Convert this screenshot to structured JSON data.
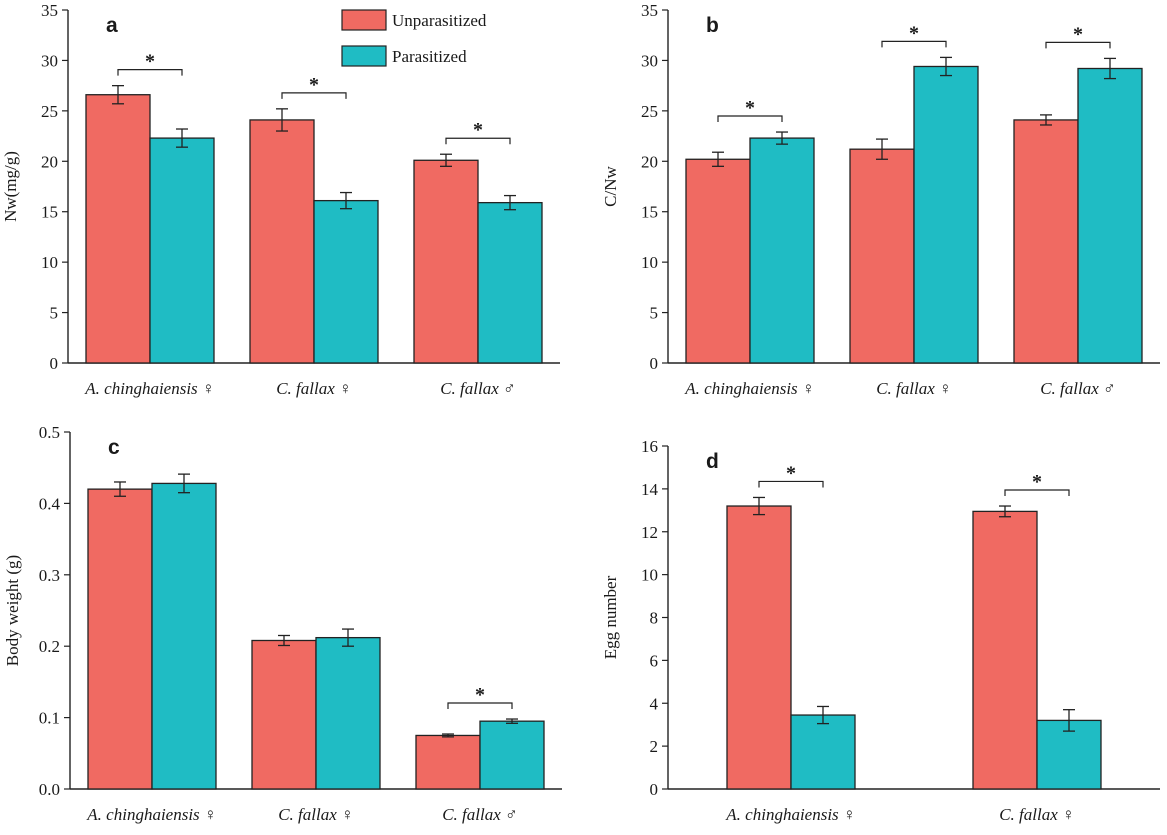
{
  "legend": {
    "items": [
      {
        "label": "Unparasitized",
        "color": "#f06a62"
      },
      {
        "label": "Parasitized",
        "color": "#1fbcc4"
      }
    ]
  },
  "colors": {
    "unparasitized": "#f06a62",
    "parasitized": "#1fbcc4",
    "edge": "#222222"
  },
  "chart_data": [
    {
      "panel": "a",
      "type": "bar",
      "ylabel": "Nw(mg/g)",
      "ylim": [
        0,
        35
      ],
      "yticks": [
        "0",
        "5",
        "10",
        "15",
        "20",
        "25",
        "30",
        "35"
      ],
      "categories": [
        {
          "name": "A. chinghaiensis",
          "sex": "♀"
        },
        {
          "name": "C. fallax",
          "sex": "♀"
        },
        {
          "name": "C. fallax",
          "sex": "♂"
        }
      ],
      "series": [
        {
          "name": "Unparasitized",
          "values": [
            26.6,
            24.1,
            20.1
          ],
          "errors": [
            0.9,
            1.1,
            0.6
          ]
        },
        {
          "name": "Parasitized",
          "values": [
            22.3,
            16.1,
            15.9
          ],
          "errors": [
            0.9,
            0.8,
            0.7
          ]
        }
      ],
      "significance": [
        "*",
        "*",
        "*"
      ]
    },
    {
      "panel": "b",
      "type": "bar",
      "ylabel": "C/Nw",
      "ylim": [
        0,
        35
      ],
      "yticks": [
        "0",
        "5",
        "10",
        "15",
        "20",
        "25",
        "30",
        "35"
      ],
      "categories": [
        {
          "name": "A. chinghaiensis",
          "sex": "♀"
        },
        {
          "name": "C. fallax",
          "sex": "♀"
        },
        {
          "name": "C. fallax",
          "sex": "♂"
        }
      ],
      "series": [
        {
          "name": "Unparasitized",
          "values": [
            20.2,
            21.2,
            24.1
          ],
          "errors": [
            0.7,
            1.0,
            0.5
          ]
        },
        {
          "name": "Parasitized",
          "values": [
            22.3,
            29.4,
            29.2
          ],
          "errors": [
            0.6,
            0.9,
            1.0
          ]
        }
      ],
      "significance": [
        "*",
        "*",
        "*"
      ]
    },
    {
      "panel": "c",
      "type": "bar",
      "ylabel": "Body weight (g)",
      "ylim": [
        0,
        0.5
      ],
      "yticks": [
        "0.0",
        "0.1",
        "0.2",
        "0.3",
        "0.4",
        "0.5"
      ],
      "categories": [
        {
          "name": "A. chinghaiensis",
          "sex": "♀"
        },
        {
          "name": "C. fallax",
          "sex": "♀"
        },
        {
          "name": "C. fallax",
          "sex": "♂"
        }
      ],
      "series": [
        {
          "name": "Unparasitized",
          "values": [
            0.42,
            0.208,
            0.075
          ],
          "errors": [
            0.01,
            0.007,
            0.002
          ]
        },
        {
          "name": "Parasitized",
          "values": [
            0.428,
            0.212,
            0.095
          ],
          "errors": [
            0.013,
            0.012,
            0.003
          ]
        }
      ],
      "significance": [
        "",
        "",
        "*"
      ]
    },
    {
      "panel": "d",
      "type": "bar",
      "ylabel": "Egg number",
      "ylim": [
        0,
        16
      ],
      "yticks": [
        "0",
        "2",
        "4",
        "6",
        "8",
        "10",
        "12",
        "14",
        "16"
      ],
      "categories": [
        {
          "name": "A. chinghaiensis",
          "sex": "♀"
        },
        {
          "name": "C. fallax",
          "sex": "♀"
        }
      ],
      "series": [
        {
          "name": "Unparasitized",
          "values": [
            13.2,
            12.95
          ],
          "errors": [
            0.4,
            0.25
          ]
        },
        {
          "name": "Parasitized",
          "values": [
            3.45,
            3.2
          ],
          "errors": [
            0.4,
            0.5
          ]
        }
      ],
      "significance": [
        "*",
        "*"
      ]
    }
  ]
}
